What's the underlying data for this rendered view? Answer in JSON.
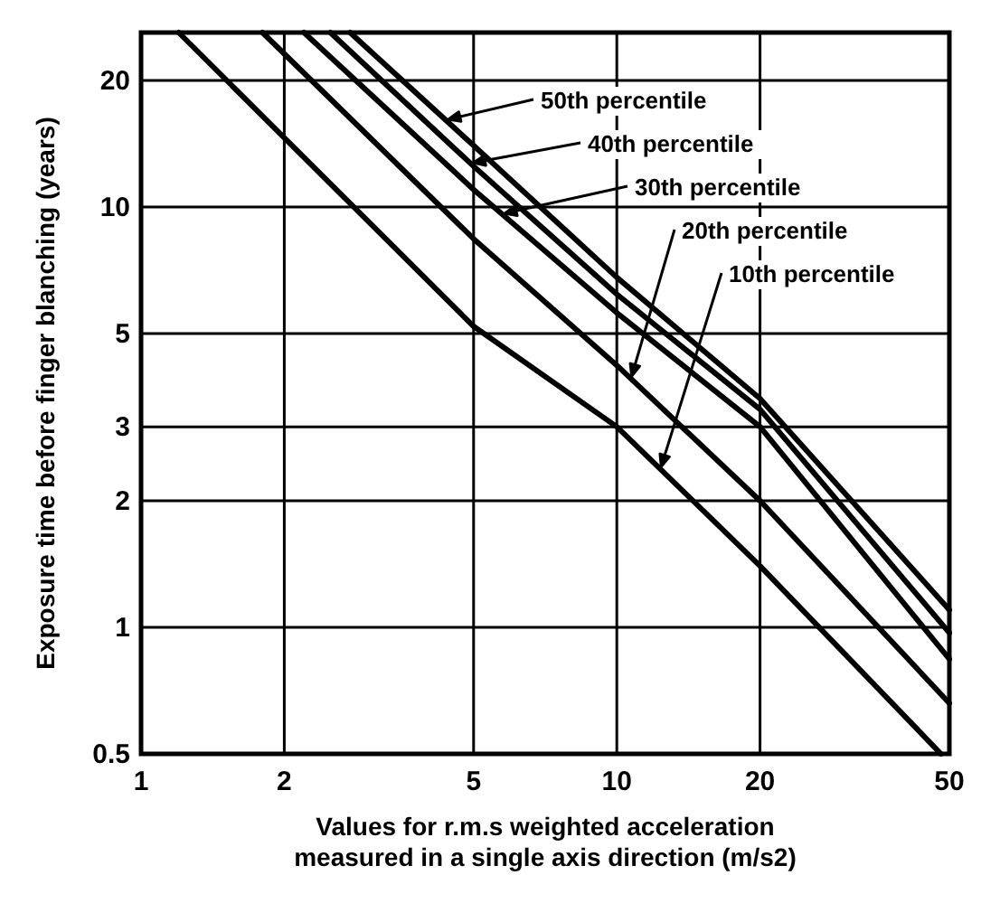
{
  "chart_data": {
    "type": "line",
    "log": "xy",
    "grid": true,
    "legend": "top right",
    "marker": "none",
    "line_style": "solid",
    "xlabel": "Values for r.m.s weighted acceleration measured in a single axis direction (m/s2)",
    "ylabel": "Exposure time before finger blanching (years)",
    "xlim": [
      1,
      50
    ],
    "xticks": [
      1,
      2,
      5,
      10,
      20,
      50
    ],
    "ylim": [
      0.5,
      26
    ],
    "yticks": [
      0.5,
      1,
      2,
      3,
      5,
      10,
      20
    ],
    "series": [
      {
        "name": "10th percentile",
        "color": "#000000",
        "x": [
          1.2,
          5,
          10,
          20,
          48
        ],
        "values": [
          26,
          5.2,
          3,
          1.4,
          0.5
        ]
      },
      {
        "name": "20th percentile",
        "color": "#000000",
        "x": [
          1.8,
          5,
          10,
          20,
          50
        ],
        "values": [
          26,
          8.4,
          4.2,
          2,
          0.66
        ]
      },
      {
        "name": "30th percentile",
        "color": "#000000",
        "x": [
          2.2,
          5,
          10,
          20,
          50
        ],
        "values": [
          26,
          11,
          5.6,
          3,
          0.84
        ]
      },
      {
        "name": "40th percentile",
        "color": "#000000",
        "x": [
          2.5,
          5,
          10,
          20,
          50
        ],
        "values": [
          26,
          12.5,
          6.2,
          3.3,
          0.97
        ]
      },
      {
        "name": "50th percentile",
        "color": "#000000",
        "x": [
          2.75,
          5,
          10,
          20,
          50
        ],
        "values": [
          26,
          14,
          6.8,
          3.5,
          1.1
        ]
      }
    ]
  }
}
